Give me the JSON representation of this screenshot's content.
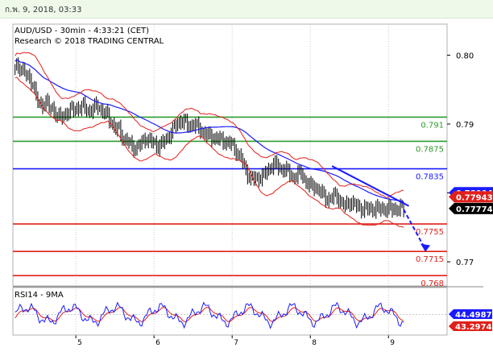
{
  "header": {
    "date_text": "ก.พ. 9, 2018, 03:33",
    "chart_title": "AUD/USD - 30min - 4:33:21 (CET)",
    "research_text": "Research © 2018 TRADING CENTRAL"
  },
  "chart_data": [
    {
      "type": "candlestick",
      "title": "AUD/USD - 30min - 4:33:21 (CET)",
      "subtitle": "Research © 2018 TRADING CENTRAL",
      "x_tick_labels": [
        "5",
        "6",
        "7",
        "8",
        "9"
      ],
      "y_tick_labels": [
        "0.80",
        "0.79",
        "0.78",
        "0.77"
      ],
      "ylim": [
        0.7665,
        0.8045
      ],
      "horizontal_levels": [
        {
          "value": 0.791,
          "label": "0.791",
          "color": "#2e9b2e"
        },
        {
          "value": 0.7875,
          "label": "0.7875",
          "color": "#2e9b2e"
        },
        {
          "value": 0.7835,
          "label": "0.7835",
          "color": "#1a1aff"
        },
        {
          "value": 0.7755,
          "label": "0.7755",
          "color": "#e0201a"
        },
        {
          "value": 0.7715,
          "label": "0.7715",
          "color": "#e0201a"
        },
        {
          "value": 0.768,
          "label": "0.768",
          "color": "#e0201a"
        }
      ],
      "price_tags": [
        {
          "label": "0.78004",
          "value": 0.78004,
          "color": "#1a1aff"
        },
        {
          "label": "0.77943",
          "value": 0.77943,
          "color": "#e0201a"
        },
        {
          "label": "0.77774",
          "value": 0.77774,
          "color": "#000000"
        }
      ],
      "close_path": [
        [
          0.0,
          0.798
        ],
        [
          0.01,
          0.7984
        ],
        [
          0.02,
          0.7977
        ],
        [
          0.03,
          0.7966
        ],
        [
          0.04,
          0.7962
        ],
        [
          0.05,
          0.7935
        ],
        [
          0.06,
          0.7925
        ],
        [
          0.07,
          0.7935
        ],
        [
          0.08,
          0.7922
        ],
        [
          0.09,
          0.792
        ],
        [
          0.1,
          0.791
        ],
        [
          0.11,
          0.791
        ],
        [
          0.12,
          0.7918
        ],
        [
          0.13,
          0.792
        ],
        [
          0.14,
          0.7922
        ],
        [
          0.15,
          0.7925
        ],
        [
          0.16,
          0.7925
        ],
        [
          0.17,
          0.7918
        ],
        [
          0.18,
          0.7922
        ],
        [
          0.19,
          0.7928
        ],
        [
          0.2,
          0.7918
        ],
        [
          0.21,
          0.7915
        ],
        [
          0.22,
          0.7905
        ],
        [
          0.23,
          0.7893
        ],
        [
          0.24,
          0.7892
        ],
        [
          0.25,
          0.7878
        ],
        [
          0.26,
          0.7874
        ],
        [
          0.27,
          0.7868
        ],
        [
          0.28,
          0.7864
        ],
        [
          0.29,
          0.7872
        ],
        [
          0.3,
          0.788
        ],
        [
          0.31,
          0.7875
        ],
        [
          0.32,
          0.7873
        ],
        [
          0.33,
          0.7868
        ],
        [
          0.34,
          0.7872
        ],
        [
          0.35,
          0.788
        ],
        [
          0.36,
          0.7888
        ],
        [
          0.37,
          0.7898
        ],
        [
          0.38,
          0.7905
        ],
        [
          0.39,
          0.7903
        ],
        [
          0.4,
          0.7897
        ],
        [
          0.41,
          0.79
        ],
        [
          0.42,
          0.7896
        ],
        [
          0.43,
          0.789
        ],
        [
          0.44,
          0.7885
        ],
        [
          0.45,
          0.7882
        ],
        [
          0.46,
          0.788
        ],
        [
          0.47,
          0.7878
        ],
        [
          0.48,
          0.7876
        ],
        [
          0.49,
          0.7873
        ],
        [
          0.5,
          0.787
        ],
        [
          0.51,
          0.786
        ],
        [
          0.52,
          0.785
        ],
        [
          0.53,
          0.7835
        ],
        [
          0.54,
          0.7822
        ],
        [
          0.55,
          0.782
        ],
        [
          0.56,
          0.7822
        ],
        [
          0.57,
          0.7825
        ],
        [
          0.58,
          0.783
        ],
        [
          0.59,
          0.784
        ],
        [
          0.6,
          0.7842
        ],
        [
          0.61,
          0.7835
        ],
        [
          0.62,
          0.7835
        ],
        [
          0.63,
          0.783
        ],
        [
          0.64,
          0.7822
        ],
        [
          0.65,
          0.7826
        ],
        [
          0.66,
          0.783
        ],
        [
          0.67,
          0.7815
        ],
        [
          0.68,
          0.781
        ],
        [
          0.69,
          0.781
        ],
        [
          0.7,
          0.7803
        ],
        [
          0.71,
          0.7797
        ],
        [
          0.72,
          0.779
        ],
        [
          0.73,
          0.7793
        ],
        [
          0.74,
          0.7798
        ],
        [
          0.75,
          0.7786
        ],
        [
          0.76,
          0.778
        ],
        [
          0.77,
          0.7788
        ],
        [
          0.78,
          0.7783
        ],
        [
          0.79,
          0.778
        ],
        [
          0.8,
          0.7777
        ]
      ],
      "rsi": {
        "label": "RSI14 - 9MA",
        "values": [
          "44.4987",
          "43.2974"
        ],
        "colors": [
          "#1a1aff",
          "#e0201a"
        ]
      }
    }
  ],
  "colors": {
    "candles": "#000000",
    "bollinger": "#e0201a",
    "moving_average": "#1a1aff",
    "trendline": "#1a1aff",
    "grid": "#c8c8c8",
    "date_bar_bg": "#eef9ea"
  }
}
